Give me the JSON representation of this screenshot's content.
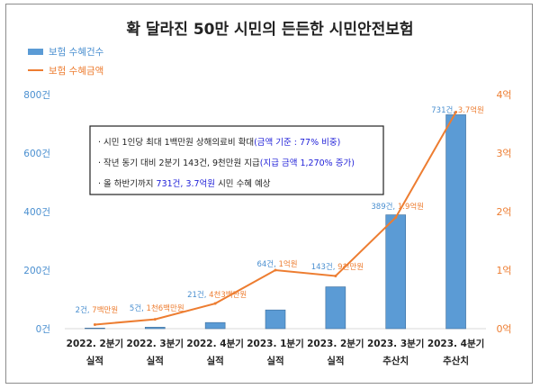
{
  "title": "확 달라진 50만 시민의 든든한 시민안전보험",
  "legend": [
    {
      "label": "보험 수혜건수",
      "color": "#5b9bd5",
      "kind": "bar"
    },
    {
      "label": "보험 수혜금액",
      "color": "#ed7d31",
      "kind": "line"
    }
  ],
  "notes": [
    [
      {
        "text": "· 시민 1인당 최대 1백만원 상해의료비 확대",
        "color": "#222222"
      },
      {
        "text": "(금액 기준 : 77% 비중)",
        "color": "#1f1fd8"
      }
    ],
    [
      {
        "text": "· 작년 동기 대비 2분기 143건, 9천만원 지급",
        "color": "#222222"
      },
      {
        "text": "(지급 금액 1,270% 증가)",
        "color": "#1f1fd8"
      }
    ],
    [
      {
        "text": "· 올 하반기까지 ",
        "color": "#222222"
      },
      {
        "text": "731건, 3.7억원",
        "color": "#1f1fd8"
      },
      {
        "text": " 시민 수혜 예상",
        "color": "#222222"
      }
    ]
  ],
  "chart_data": {
    "type": "bar+line",
    "title": "확 달라진 50만 시민의 든든한 시민안전보험",
    "categories": [
      [
        "2022. 2분기",
        "실적"
      ],
      [
        "2022. 3분기",
        "실적"
      ],
      [
        "2022. 4분기",
        "실적"
      ],
      [
        "2023. 1분기",
        "실적"
      ],
      [
        "2023. 2분기",
        "실적"
      ],
      [
        "2023. 3분기",
        "추산치"
      ],
      [
        "2023. 4분기",
        "추산치"
      ]
    ],
    "series": [
      {
        "name": "보험 수혜건수",
        "type": "bar",
        "axis": "left",
        "color": "#5b9bd5",
        "values": [
          2,
          5,
          21,
          64,
          143,
          389,
          731
        ],
        "count_labels": [
          "2건,",
          "5건,",
          "21건,",
          "64건,",
          "143건,",
          "389건,",
          "731건,"
        ]
      },
      {
        "name": "보험 수혜금액",
        "type": "line",
        "axis": "right",
        "color": "#ed7d31",
        "values": [
          0.07,
          0.16,
          0.43,
          1.0,
          0.9,
          1.9,
          3.7
        ],
        "amount_labels": [
          "7백만원",
          "1천6백만원",
          "4천3백만원",
          "1억원",
          "9천만원",
          "1.9억원",
          "3.7억원"
        ]
      }
    ],
    "left_axis": {
      "ylim": [
        0,
        800
      ],
      "ticks": [
        "0건",
        "200건",
        "400건",
        "600건",
        "800건"
      ]
    },
    "right_axis": {
      "ylim": [
        0,
        4
      ],
      "ticks": [
        "0억",
        "1억",
        "2억",
        "3억",
        "4억"
      ]
    }
  }
}
